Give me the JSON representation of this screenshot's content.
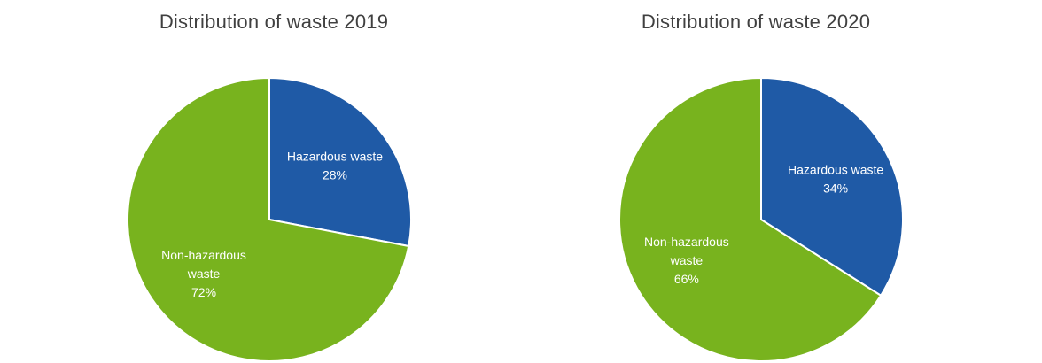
{
  "chart_data": [
    {
      "type": "pie",
      "title": "Distribution of waste 2019",
      "slices": [
        {
          "label_lines": [
            "Hazardous waste"
          ],
          "value_label": "28%",
          "value": 28,
          "color": "#1f5aa6"
        },
        {
          "label_lines": [
            "Non-hazardous",
            "waste"
          ],
          "value_label": "72%",
          "value": 72,
          "color": "#78b31e"
        }
      ]
    },
    {
      "type": "pie",
      "title": "Distribution of waste 2020",
      "slices": [
        {
          "label_lines": [
            "Hazardous waste"
          ],
          "value_label": "34%",
          "value": 34,
          "color": "#1f5aa6"
        },
        {
          "label_lines": [
            "Non-hazardous",
            "waste"
          ],
          "value_label": "66%",
          "value": 66,
          "color": "#78b31e"
        }
      ]
    }
  ]
}
